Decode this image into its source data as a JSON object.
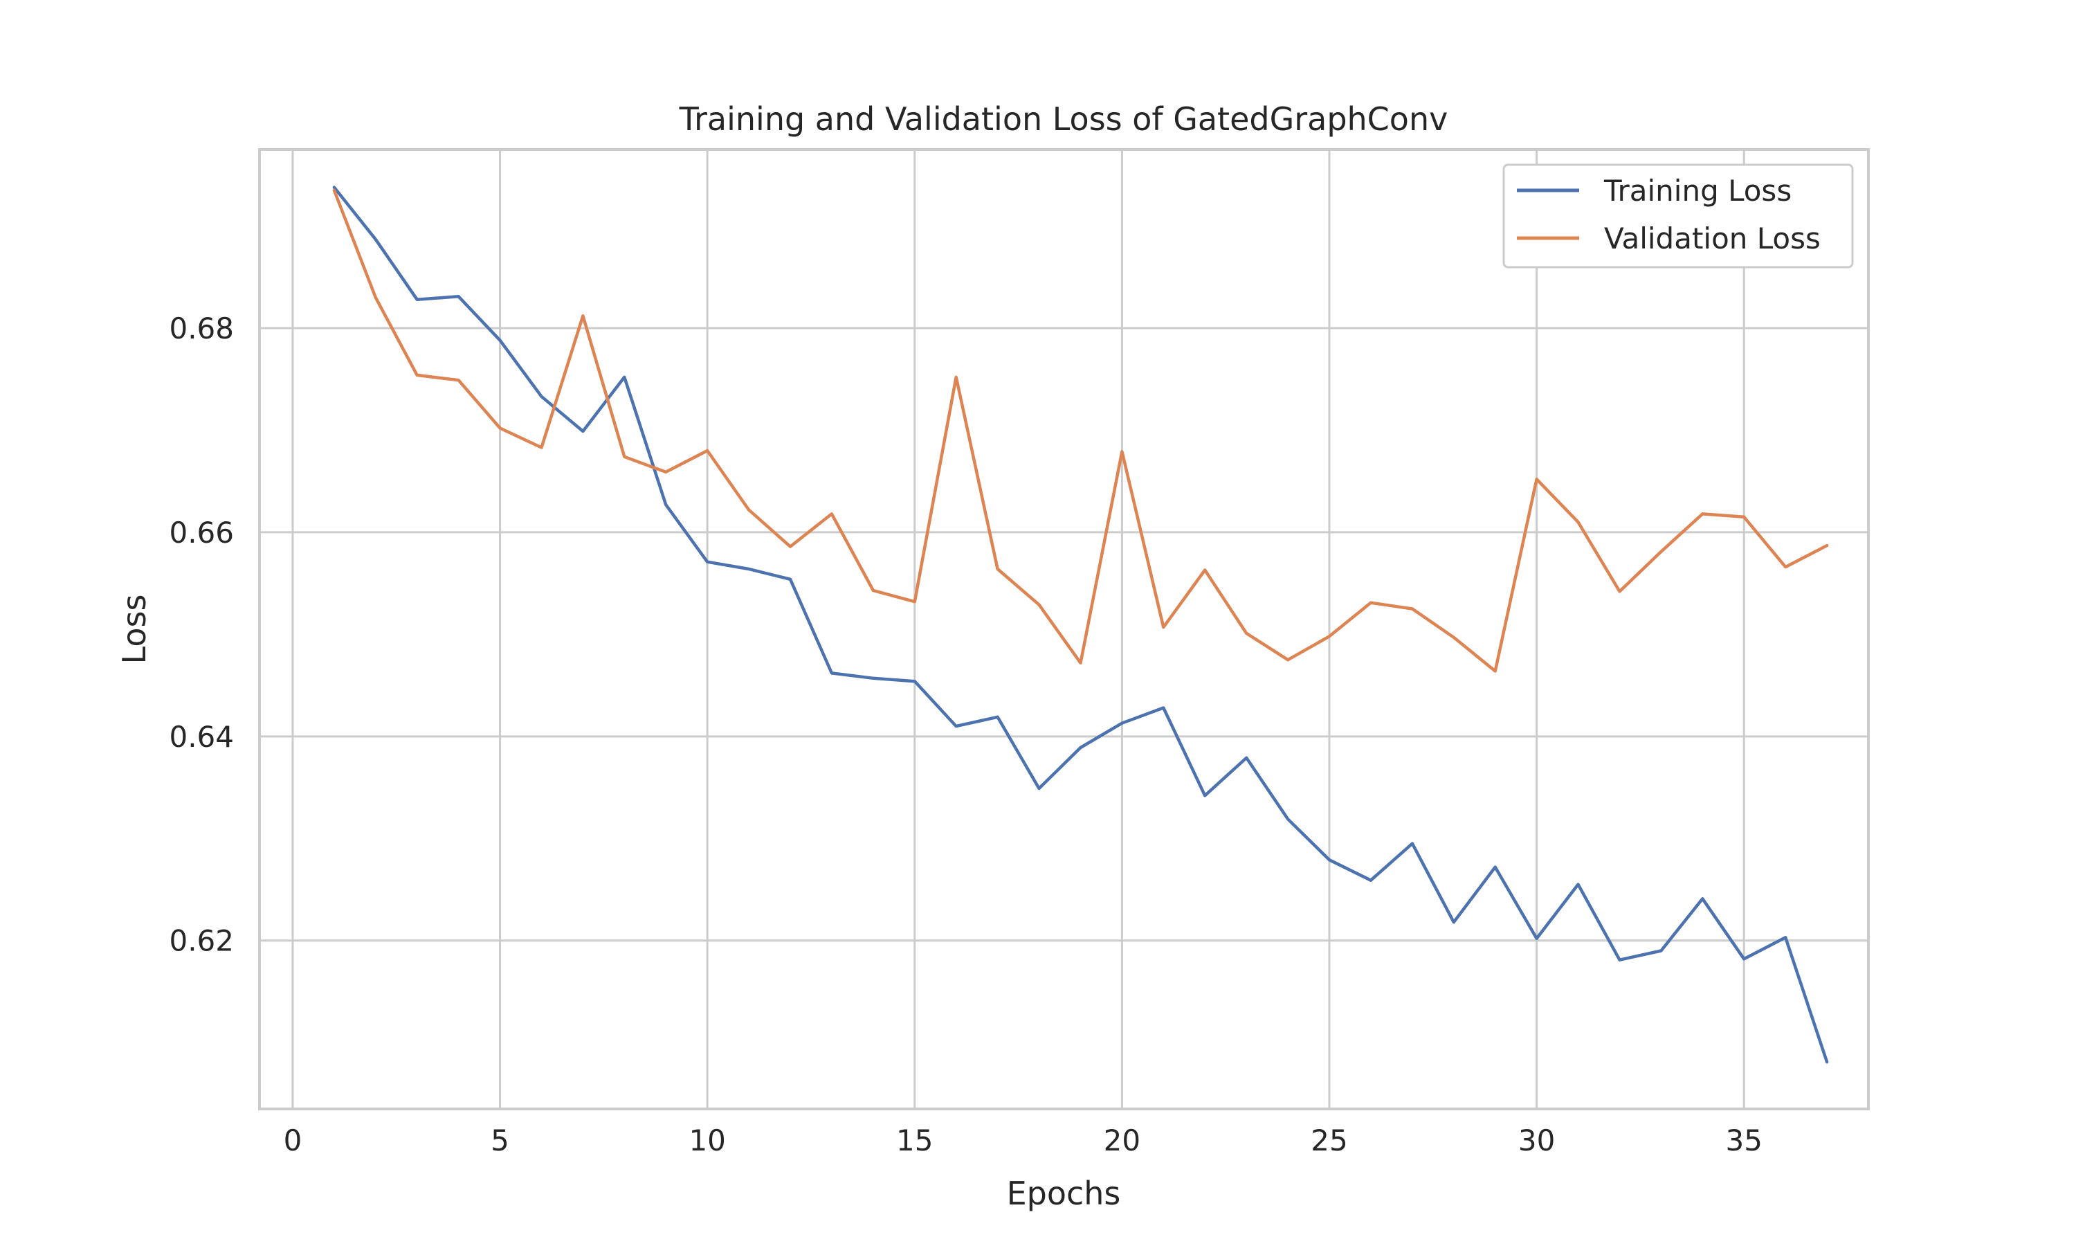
{
  "chart_data": {
    "type": "line",
    "title": "Training and Validation Loss of GatedGraphConv",
    "xlabel": "Epochs",
    "ylabel": "Loss",
    "xlim": [
      -0.8,
      38.0
    ],
    "ylim": [
      0.6035,
      0.6975
    ],
    "xticks": [
      0,
      5,
      10,
      15,
      20,
      25,
      30,
      35
    ],
    "xtick_labels": [
      "0",
      "5",
      "10",
      "15",
      "20",
      "25",
      "30",
      "35"
    ],
    "yticks": [
      0.62,
      0.64,
      0.66,
      0.68
    ],
    "ytick_labels": [
      "0.62",
      "0.64",
      "0.66",
      "0.68"
    ],
    "grid": true,
    "legend_position": "top-right",
    "x": [
      1,
      2,
      3,
      4,
      5,
      6,
      7,
      8,
      9,
      10,
      11,
      12,
      13,
      14,
      15,
      16,
      17,
      18,
      19,
      20,
      21,
      22,
      23,
      24,
      25,
      26,
      27,
      28,
      29,
      30,
      31,
      32,
      33,
      34,
      35,
      36,
      37
    ],
    "series": [
      {
        "name": "Training Loss",
        "color": "#4c72b0",
        "values": [
          0.6938,
          0.6887,
          0.6828,
          0.6831,
          0.6788,
          0.6733,
          0.6699,
          0.6752,
          0.6627,
          0.6571,
          0.6564,
          0.6554,
          0.6462,
          0.6457,
          0.6454,
          0.641,
          0.6419,
          0.6349,
          0.6389,
          0.6413,
          0.6428,
          0.6342,
          0.6379,
          0.6319,
          0.6279,
          0.6259,
          0.6295,
          0.6218,
          0.6272,
          0.6202,
          0.6255,
          0.6181,
          0.619,
          0.6241,
          0.6182,
          0.6203,
          0.6081
        ]
      },
      {
        "name": "Validation Loss",
        "color": "#dd8452",
        "values": [
          0.6935,
          0.683,
          0.6754,
          0.6749,
          0.6702,
          0.6683,
          0.6812,
          0.6674,
          0.6659,
          0.668,
          0.6622,
          0.6586,
          0.6618,
          0.6543,
          0.6532,
          0.6752,
          0.6564,
          0.6529,
          0.6472,
          0.6679,
          0.6507,
          0.6563,
          0.6501,
          0.6475,
          0.6498,
          0.6531,
          0.6525,
          0.6497,
          0.6464,
          0.6652,
          0.661,
          0.6542,
          0.6581,
          0.6618,
          0.6615,
          0.6566,
          0.6587
        ]
      }
    ]
  }
}
